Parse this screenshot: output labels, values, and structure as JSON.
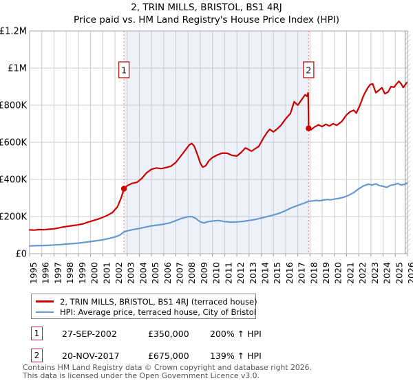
{
  "title": "2, TRIN MILLS, BRISTOL, BS1 4RJ",
  "subtitle": "Price paid vs. HM Land Registry's House Price Index (HPI)",
  "chart_data": {
    "type": "line",
    "title": "2, TRIN MILLS, BRISTOL, BS1 4RJ",
    "subtitle": "Price paid vs. HM Land Registry's House Price Index (HPI)",
    "xlabel": "",
    "ylabel": "",
    "x_range": [
      1995,
      2026
    ],
    "ylim": [
      0,
      1200000
    ],
    "grid": true,
    "legend_position": "bottom",
    "y_ticks": [
      "£0",
      "£200K",
      "£400K",
      "£600K",
      "£800K",
      "£1M",
      "£1.2M"
    ],
    "x_ticks": [
      "1995",
      "1996",
      "1997",
      "1998",
      "1999",
      "2000",
      "2001",
      "2002",
      "2003",
      "2004",
      "2005",
      "2006",
      "2007",
      "2008",
      "2009",
      "2010",
      "2011",
      "2012",
      "2013",
      "2014",
      "2015",
      "2016",
      "2017",
      "2018",
      "2019",
      "2020",
      "2021",
      "2022",
      "2023",
      "2024",
      "2025",
      "2026"
    ],
    "colors": {
      "accent_red": "#cc0000",
      "hpi_blue": "#6699cc",
      "shade": "#edf1fa",
      "dashed": "#e57b7b",
      "grid": "#cccccc",
      "border": "#aaaaaa"
    },
    "shade_between_sales": true,
    "future_hatch_at_right_edge": true,
    "markers": [
      {
        "label": "1",
        "year": 2002.74,
        "price": 350000
      },
      {
        "label": "2",
        "year": 2017.89,
        "price": 675000
      }
    ],
    "series": [
      {
        "name": "2, TRIN MILLS, BRISTOL, BS1 4RJ (terraced house)",
        "color": "#cc0000",
        "points": [
          [
            1995.0,
            128000
          ],
          [
            1995.4,
            127000
          ],
          [
            1995.8,
            130000
          ],
          [
            1996.2,
            129000
          ],
          [
            1996.6,
            132000
          ],
          [
            1997.0,
            134000
          ],
          [
            1997.4,
            139000
          ],
          [
            1997.8,
            144000
          ],
          [
            1998.2,
            148000
          ],
          [
            1998.6,
            152000
          ],
          [
            1999.0,
            156000
          ],
          [
            1999.4,
            161000
          ],
          [
            1999.8,
            170000
          ],
          [
            2000.2,
            178000
          ],
          [
            2000.6,
            186000
          ],
          [
            2001.0,
            196000
          ],
          [
            2001.4,
            207000
          ],
          [
            2001.8,
            222000
          ],
          [
            2002.2,
            252000
          ],
          [
            2002.5,
            298000
          ],
          [
            2002.74,
            350000
          ],
          [
            2003.0,
            366000
          ],
          [
            2003.4,
            379000
          ],
          [
            2003.8,
            384000
          ],
          [
            2004.2,
            405000
          ],
          [
            2004.6,
            436000
          ],
          [
            2005.0,
            455000
          ],
          [
            2005.4,
            462000
          ],
          [
            2005.8,
            458000
          ],
          [
            2006.2,
            464000
          ],
          [
            2006.6,
            471000
          ],
          [
            2007.0,
            492000
          ],
          [
            2007.4,
            526000
          ],
          [
            2007.8,
            560000
          ],
          [
            2008.1,
            586000
          ],
          [
            2008.3,
            594000
          ],
          [
            2008.5,
            580000
          ],
          [
            2008.8,
            528000
          ],
          [
            2009.0,
            488000
          ],
          [
            2009.2,
            466000
          ],
          [
            2009.45,
            474000
          ],
          [
            2009.7,
            500000
          ],
          [
            2010.0,
            518000
          ],
          [
            2010.4,
            532000
          ],
          [
            2010.8,
            542000
          ],
          [
            2011.2,
            541000
          ],
          [
            2011.6,
            530000
          ],
          [
            2012.0,
            526000
          ],
          [
            2012.4,
            548000
          ],
          [
            2012.7,
            570000
          ],
          [
            2013.0,
            560000
          ],
          [
            2013.2,
            552000
          ],
          [
            2013.5,
            565000
          ],
          [
            2013.8,
            578000
          ],
          [
            2014.2,
            625000
          ],
          [
            2014.5,
            655000
          ],
          [
            2014.7,
            670000
          ],
          [
            2015.0,
            656000
          ],
          [
            2015.3,
            672000
          ],
          [
            2015.6,
            690000
          ],
          [
            2016.0,
            726000
          ],
          [
            2016.4,
            756000
          ],
          [
            2016.7,
            819000
          ],
          [
            2017.0,
            800000
          ],
          [
            2017.3,
            828000
          ],
          [
            2017.6,
            856000
          ],
          [
            2017.75,
            848000
          ],
          [
            2017.85,
            867000
          ],
          [
            2017.89,
            675000
          ],
          [
            2018.1,
            668000
          ],
          [
            2018.4,
            684000
          ],
          [
            2018.7,
            694000
          ],
          [
            2019.0,
            685000
          ],
          [
            2019.3,
            697000
          ],
          [
            2019.6,
            688000
          ],
          [
            2019.9,
            700000
          ],
          [
            2020.2,
            692000
          ],
          [
            2020.6,
            712000
          ],
          [
            2021.0,
            748000
          ],
          [
            2021.3,
            765000
          ],
          [
            2021.6,
            773000
          ],
          [
            2021.8,
            757000
          ],
          [
            2022.1,
            800000
          ],
          [
            2022.4,
            852000
          ],
          [
            2022.7,
            890000
          ],
          [
            2022.95,
            912000
          ],
          [
            2023.15,
            915000
          ],
          [
            2023.4,
            867000
          ],
          [
            2023.65,
            880000
          ],
          [
            2023.9,
            894000
          ],
          [
            2024.15,
            862000
          ],
          [
            2024.4,
            871000
          ],
          [
            2024.65,
            900000
          ],
          [
            2024.9,
            897000
          ],
          [
            2025.1,
            915000
          ],
          [
            2025.3,
            929000
          ],
          [
            2025.5,
            913000
          ],
          [
            2025.65,
            895000
          ],
          [
            2025.8,
            909000
          ],
          [
            2025.95,
            922000
          ]
        ]
      },
      {
        "name": "HPI: Average price, terraced house, City of Bristol",
        "color": "#6699cc",
        "points": [
          [
            1995.0,
            42000
          ],
          [
            1995.5,
            43000
          ],
          [
            1996.0,
            44000
          ],
          [
            1996.5,
            45000
          ],
          [
            1997.0,
            47000
          ],
          [
            1997.5,
            49000
          ],
          [
            1998.0,
            52000
          ],
          [
            1998.5,
            54000
          ],
          [
            1999.0,
            57000
          ],
          [
            1999.5,
            61000
          ],
          [
            2000.0,
            65000
          ],
          [
            2000.5,
            70000
          ],
          [
            2001.0,
            75000
          ],
          [
            2001.5,
            82000
          ],
          [
            2002.0,
            90000
          ],
          [
            2002.4,
            100000
          ],
          [
            2002.74,
            117000
          ],
          [
            2003.0,
            123000
          ],
          [
            2003.5,
            130000
          ],
          [
            2004.0,
            136000
          ],
          [
            2004.5,
            143000
          ],
          [
            2005.0,
            150000
          ],
          [
            2005.5,
            154000
          ],
          [
            2006.0,
            159000
          ],
          [
            2006.5,
            166000
          ],
          [
            2007.0,
            178000
          ],
          [
            2007.5,
            191000
          ],
          [
            2008.0,
            199000
          ],
          [
            2008.3,
            200000
          ],
          [
            2008.6,
            191000
          ],
          [
            2009.0,
            172000
          ],
          [
            2009.3,
            165000
          ],
          [
            2009.6,
            172000
          ],
          [
            2010.0,
            176000
          ],
          [
            2010.5,
            179000
          ],
          [
            2011.0,
            173000
          ],
          [
            2011.5,
            170000
          ],
          [
            2012.0,
            171000
          ],
          [
            2012.5,
            174000
          ],
          [
            2013.0,
            179000
          ],
          [
            2013.5,
            184000
          ],
          [
            2014.0,
            192000
          ],
          [
            2014.5,
            200000
          ],
          [
            2015.0,
            208000
          ],
          [
            2015.5,
            218000
          ],
          [
            2016.0,
            232000
          ],
          [
            2016.5,
            248000
          ],
          [
            2017.0,
            260000
          ],
          [
            2017.5,
            272000
          ],
          [
            2017.89,
            282000
          ],
          [
            2018.2,
            284000
          ],
          [
            2018.5,
            287000
          ],
          [
            2018.8,
            285000
          ],
          [
            2019.1,
            289000
          ],
          [
            2019.4,
            292000
          ],
          [
            2019.7,
            290000
          ],
          [
            2020.0,
            294000
          ],
          [
            2020.4,
            298000
          ],
          [
            2020.8,
            305000
          ],
          [
            2021.2,
            315000
          ],
          [
            2021.6,
            330000
          ],
          [
            2022.0,
            350000
          ],
          [
            2022.4,
            365000
          ],
          [
            2022.8,
            375000
          ],
          [
            2023.1,
            370000
          ],
          [
            2023.4,
            376000
          ],
          [
            2023.7,
            367000
          ],
          [
            2024.0,
            363000
          ],
          [
            2024.3,
            357000
          ],
          [
            2024.6,
            368000
          ],
          [
            2024.9,
            372000
          ],
          [
            2025.2,
            378000
          ],
          [
            2025.5,
            370000
          ],
          [
            2025.75,
            374000
          ],
          [
            2025.95,
            380000
          ]
        ]
      }
    ]
  },
  "legend": {
    "items": [
      {
        "label": "2, TRIN MILLS, BRISTOL, BS1 4RJ (terraced house)",
        "color": "#cc0000"
      },
      {
        "label": "HPI: Average price, terraced house, City of Bristol",
        "color": "#6699cc"
      }
    ]
  },
  "transactions": [
    {
      "num": "1",
      "date": "27-SEP-2002",
      "price": "£350,000",
      "hpi": "200% ↑ HPI"
    },
    {
      "num": "2",
      "date": "20-NOV-2017",
      "price": "£675,000",
      "hpi": "139% ↑ HPI"
    }
  ],
  "footer": {
    "line1": "Contains HM Land Registry data © Crown copyright and database right 2026.",
    "line2": "This data is licensed under the Open Government Licence v3.0."
  }
}
